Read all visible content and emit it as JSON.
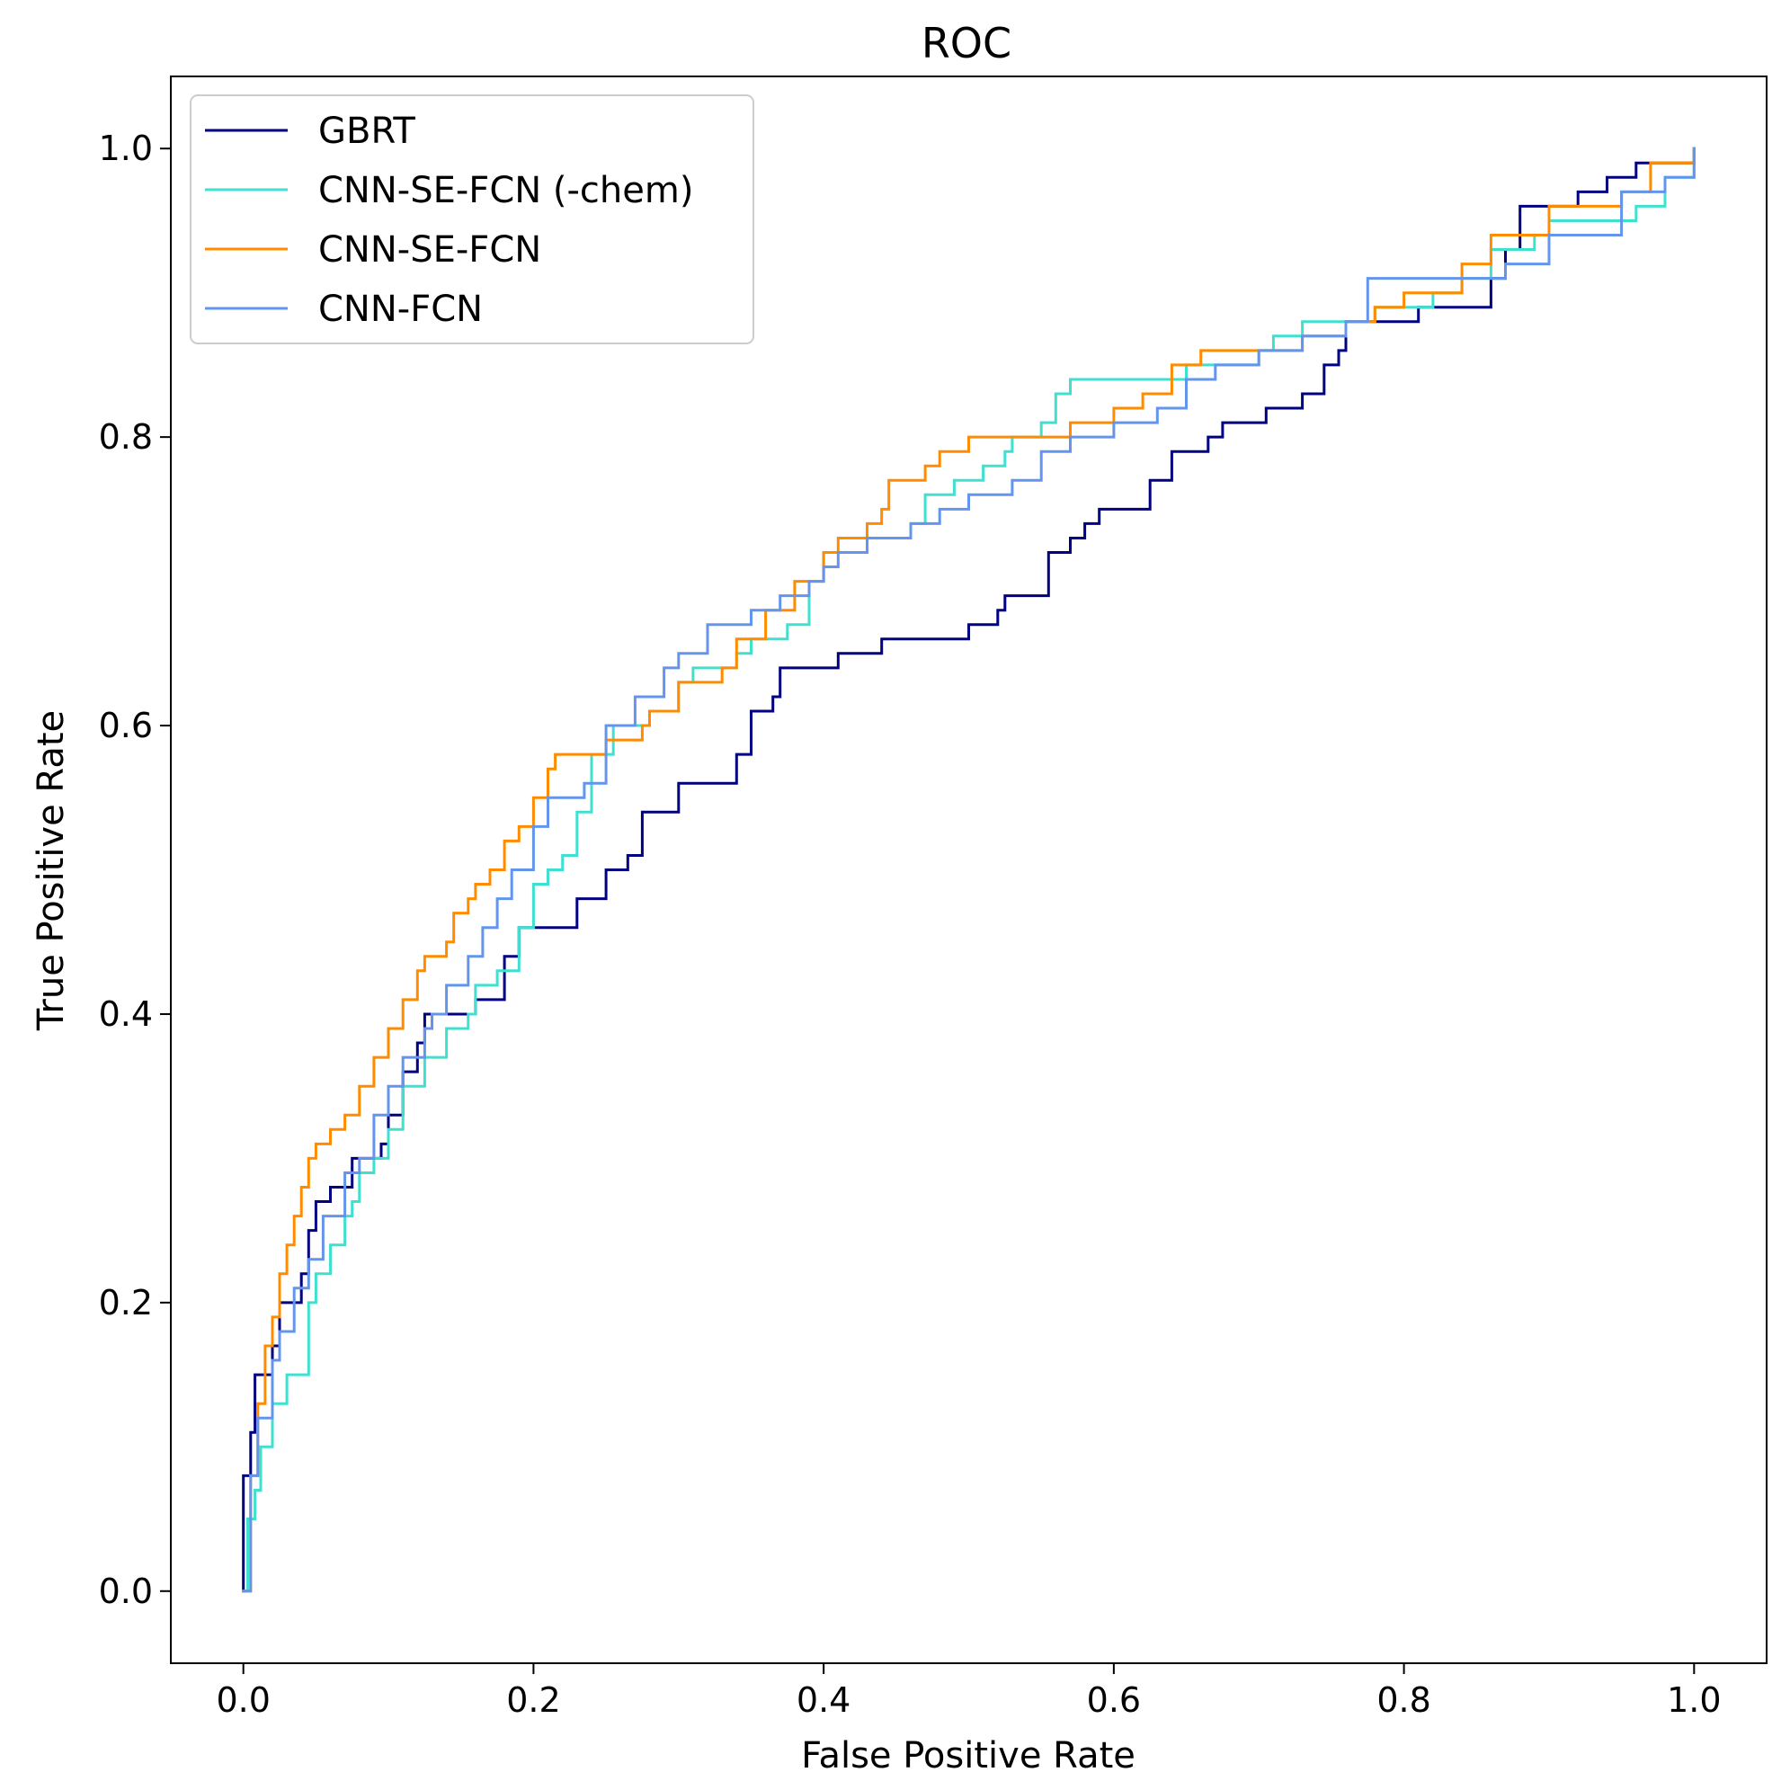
{
  "chart_data": {
    "type": "line",
    "title": "ROC",
    "xlabel": "False Positive Rate",
    "ylabel": "True Positive Rate",
    "xlim": [
      -0.05,
      1.05
    ],
    "ylim": [
      -0.05,
      1.05
    ],
    "xticks": [
      0.0,
      0.2,
      0.4,
      0.6,
      0.8,
      1.0
    ],
    "xtick_labels": [
      "0.0",
      "0.2",
      "0.4",
      "0.6",
      "0.8",
      "1.0"
    ],
    "yticks": [
      0.0,
      0.2,
      0.4,
      0.6,
      0.8,
      1.0
    ],
    "ytick_labels": [
      "0.0",
      "0.2",
      "0.4",
      "0.6",
      "0.8",
      "1.0"
    ],
    "grid": false,
    "legend_position": "top-left",
    "series": [
      {
        "name": "GBRT",
        "color": "#000080",
        "points": [
          [
            0.0,
            0.0
          ],
          [
            0.0,
            0.08
          ],
          [
            0.005,
            0.11
          ],
          [
            0.008,
            0.15
          ],
          [
            0.015,
            0.15
          ],
          [
            0.02,
            0.17
          ],
          [
            0.025,
            0.2
          ],
          [
            0.035,
            0.2
          ],
          [
            0.04,
            0.22
          ],
          [
            0.045,
            0.25
          ],
          [
            0.05,
            0.27
          ],
          [
            0.06,
            0.28
          ],
          [
            0.07,
            0.28
          ],
          [
            0.075,
            0.3
          ],
          [
            0.085,
            0.3
          ],
          [
            0.095,
            0.31
          ],
          [
            0.1,
            0.33
          ],
          [
            0.11,
            0.36
          ],
          [
            0.12,
            0.38
          ],
          [
            0.125,
            0.4
          ],
          [
            0.15,
            0.4
          ],
          [
            0.16,
            0.41
          ],
          [
            0.175,
            0.41
          ],
          [
            0.18,
            0.44
          ],
          [
            0.19,
            0.46
          ],
          [
            0.21,
            0.46
          ],
          [
            0.23,
            0.48
          ],
          [
            0.245,
            0.48
          ],
          [
            0.25,
            0.5
          ],
          [
            0.265,
            0.51
          ],
          [
            0.275,
            0.54
          ],
          [
            0.295,
            0.54
          ],
          [
            0.3,
            0.56
          ],
          [
            0.33,
            0.56
          ],
          [
            0.34,
            0.58
          ],
          [
            0.35,
            0.61
          ],
          [
            0.365,
            0.62
          ],
          [
            0.37,
            0.64
          ],
          [
            0.4,
            0.64
          ],
          [
            0.41,
            0.65
          ],
          [
            0.43,
            0.65
          ],
          [
            0.44,
            0.66
          ],
          [
            0.485,
            0.66
          ],
          [
            0.5,
            0.67
          ],
          [
            0.52,
            0.68
          ],
          [
            0.525,
            0.69
          ],
          [
            0.545,
            0.69
          ],
          [
            0.555,
            0.72
          ],
          [
            0.57,
            0.73
          ],
          [
            0.58,
            0.74
          ],
          [
            0.59,
            0.75
          ],
          [
            0.62,
            0.75
          ],
          [
            0.625,
            0.77
          ],
          [
            0.64,
            0.79
          ],
          [
            0.66,
            0.79
          ],
          [
            0.665,
            0.8
          ],
          [
            0.675,
            0.81
          ],
          [
            0.705,
            0.82
          ],
          [
            0.73,
            0.83
          ],
          [
            0.745,
            0.85
          ],
          [
            0.755,
            0.86
          ],
          [
            0.76,
            0.88
          ],
          [
            0.8,
            0.88
          ],
          [
            0.81,
            0.89
          ],
          [
            0.845,
            0.89
          ],
          [
            0.86,
            0.91
          ],
          [
            0.87,
            0.93
          ],
          [
            0.88,
            0.96
          ],
          [
            0.9,
            0.96
          ],
          [
            0.92,
            0.97
          ],
          [
            0.94,
            0.98
          ],
          [
            0.96,
            0.99
          ],
          [
            0.98,
            0.99
          ],
          [
            1.0,
            1.0
          ]
        ]
      },
      {
        "name": "CNN-SE-FCN (-chem)",
        "color": "#40e0d0",
        "points": [
          [
            0.0,
            0.0
          ],
          [
            0.003,
            0.05
          ],
          [
            0.008,
            0.07
          ],
          [
            0.012,
            0.1
          ],
          [
            0.02,
            0.13
          ],
          [
            0.03,
            0.15
          ],
          [
            0.038,
            0.15
          ],
          [
            0.045,
            0.2
          ],
          [
            0.05,
            0.22
          ],
          [
            0.06,
            0.24
          ],
          [
            0.07,
            0.26
          ],
          [
            0.075,
            0.27
          ],
          [
            0.08,
            0.29
          ],
          [
            0.09,
            0.3
          ],
          [
            0.1,
            0.32
          ],
          [
            0.11,
            0.35
          ],
          [
            0.125,
            0.37
          ],
          [
            0.14,
            0.39
          ],
          [
            0.155,
            0.4
          ],
          [
            0.16,
            0.42
          ],
          [
            0.175,
            0.43
          ],
          [
            0.19,
            0.46
          ],
          [
            0.2,
            0.49
          ],
          [
            0.21,
            0.5
          ],
          [
            0.22,
            0.51
          ],
          [
            0.23,
            0.54
          ],
          [
            0.24,
            0.58
          ],
          [
            0.255,
            0.6
          ],
          [
            0.28,
            0.61
          ],
          [
            0.3,
            0.63
          ],
          [
            0.31,
            0.64
          ],
          [
            0.34,
            0.65
          ],
          [
            0.35,
            0.66
          ],
          [
            0.375,
            0.67
          ],
          [
            0.39,
            0.7
          ],
          [
            0.4,
            0.72
          ],
          [
            0.43,
            0.73
          ],
          [
            0.45,
            0.73
          ],
          [
            0.46,
            0.74
          ],
          [
            0.47,
            0.76
          ],
          [
            0.49,
            0.77
          ],
          [
            0.51,
            0.78
          ],
          [
            0.525,
            0.79
          ],
          [
            0.53,
            0.8
          ],
          [
            0.55,
            0.81
          ],
          [
            0.56,
            0.83
          ],
          [
            0.57,
            0.84
          ],
          [
            0.63,
            0.84
          ],
          [
            0.65,
            0.85
          ],
          [
            0.66,
            0.85
          ],
          [
            0.7,
            0.86
          ],
          [
            0.71,
            0.87
          ],
          [
            0.73,
            0.88
          ],
          [
            0.76,
            0.88
          ],
          [
            0.78,
            0.89
          ],
          [
            0.82,
            0.9
          ],
          [
            0.84,
            0.91
          ],
          [
            0.86,
            0.93
          ],
          [
            0.89,
            0.94
          ],
          [
            0.9,
            0.95
          ],
          [
            0.95,
            0.95
          ],
          [
            0.96,
            0.96
          ],
          [
            0.98,
            0.98
          ],
          [
            1.0,
            1.0
          ]
        ]
      },
      {
        "name": "CNN-SE-FCN",
        "color": "#ff8c00",
        "points": [
          [
            0.0,
            0.0
          ],
          [
            0.005,
            0.08
          ],
          [
            0.01,
            0.13
          ],
          [
            0.015,
            0.17
          ],
          [
            0.02,
            0.19
          ],
          [
            0.025,
            0.22
          ],
          [
            0.03,
            0.24
          ],
          [
            0.035,
            0.26
          ],
          [
            0.04,
            0.28
          ],
          [
            0.045,
            0.3
          ],
          [
            0.05,
            0.31
          ],
          [
            0.06,
            0.32
          ],
          [
            0.07,
            0.33
          ],
          [
            0.08,
            0.35
          ],
          [
            0.09,
            0.37
          ],
          [
            0.1,
            0.39
          ],
          [
            0.11,
            0.41
          ],
          [
            0.12,
            0.43
          ],
          [
            0.125,
            0.44
          ],
          [
            0.14,
            0.45
          ],
          [
            0.145,
            0.47
          ],
          [
            0.155,
            0.48
          ],
          [
            0.16,
            0.49
          ],
          [
            0.17,
            0.5
          ],
          [
            0.18,
            0.52
          ],
          [
            0.19,
            0.53
          ],
          [
            0.2,
            0.55
          ],
          [
            0.21,
            0.57
          ],
          [
            0.215,
            0.58
          ],
          [
            0.25,
            0.59
          ],
          [
            0.275,
            0.6
          ],
          [
            0.28,
            0.61
          ],
          [
            0.3,
            0.63
          ],
          [
            0.33,
            0.64
          ],
          [
            0.34,
            0.66
          ],
          [
            0.36,
            0.68
          ],
          [
            0.38,
            0.7
          ],
          [
            0.4,
            0.72
          ],
          [
            0.41,
            0.73
          ],
          [
            0.43,
            0.74
          ],
          [
            0.44,
            0.75
          ],
          [
            0.445,
            0.77
          ],
          [
            0.47,
            0.78
          ],
          [
            0.48,
            0.79
          ],
          [
            0.5,
            0.8
          ],
          [
            0.55,
            0.8
          ],
          [
            0.57,
            0.81
          ],
          [
            0.6,
            0.82
          ],
          [
            0.62,
            0.83
          ],
          [
            0.64,
            0.85
          ],
          [
            0.66,
            0.86
          ],
          [
            0.7,
            0.86
          ],
          [
            0.73,
            0.87
          ],
          [
            0.76,
            0.88
          ],
          [
            0.78,
            0.89
          ],
          [
            0.8,
            0.9
          ],
          [
            0.84,
            0.92
          ],
          [
            0.86,
            0.94
          ],
          [
            0.9,
            0.96
          ],
          [
            0.95,
            0.97
          ],
          [
            0.97,
            0.99
          ],
          [
            1.0,
            1.0
          ]
        ]
      },
      {
        "name": "CNN-FCN",
        "color": "#6495ed",
        "points": [
          [
            0.0,
            0.0
          ],
          [
            0.005,
            0.08
          ],
          [
            0.01,
            0.12
          ],
          [
            0.02,
            0.16
          ],
          [
            0.025,
            0.18
          ],
          [
            0.035,
            0.21
          ],
          [
            0.045,
            0.23
          ],
          [
            0.055,
            0.26
          ],
          [
            0.07,
            0.29
          ],
          [
            0.08,
            0.3
          ],
          [
            0.09,
            0.33
          ],
          [
            0.1,
            0.35
          ],
          [
            0.11,
            0.37
          ],
          [
            0.125,
            0.39
          ],
          [
            0.13,
            0.4
          ],
          [
            0.14,
            0.42
          ],
          [
            0.155,
            0.44
          ],
          [
            0.165,
            0.46
          ],
          [
            0.175,
            0.48
          ],
          [
            0.185,
            0.5
          ],
          [
            0.2,
            0.53
          ],
          [
            0.21,
            0.55
          ],
          [
            0.235,
            0.56
          ],
          [
            0.25,
            0.6
          ],
          [
            0.27,
            0.62
          ],
          [
            0.29,
            0.64
          ],
          [
            0.3,
            0.65
          ],
          [
            0.32,
            0.67
          ],
          [
            0.35,
            0.68
          ],
          [
            0.37,
            0.69
          ],
          [
            0.39,
            0.7
          ],
          [
            0.4,
            0.71
          ],
          [
            0.41,
            0.72
          ],
          [
            0.43,
            0.73
          ],
          [
            0.46,
            0.74
          ],
          [
            0.48,
            0.75
          ],
          [
            0.5,
            0.76
          ],
          [
            0.53,
            0.77
          ],
          [
            0.55,
            0.79
          ],
          [
            0.57,
            0.8
          ],
          [
            0.6,
            0.81
          ],
          [
            0.63,
            0.82
          ],
          [
            0.65,
            0.84
          ],
          [
            0.67,
            0.85
          ],
          [
            0.7,
            0.86
          ],
          [
            0.73,
            0.87
          ],
          [
            0.76,
            0.88
          ],
          [
            0.775,
            0.91
          ],
          [
            0.85,
            0.91
          ],
          [
            0.87,
            0.92
          ],
          [
            0.9,
            0.94
          ],
          [
            0.95,
            0.97
          ],
          [
            0.98,
            0.98
          ],
          [
            1.0,
            1.0
          ]
        ]
      }
    ]
  }
}
